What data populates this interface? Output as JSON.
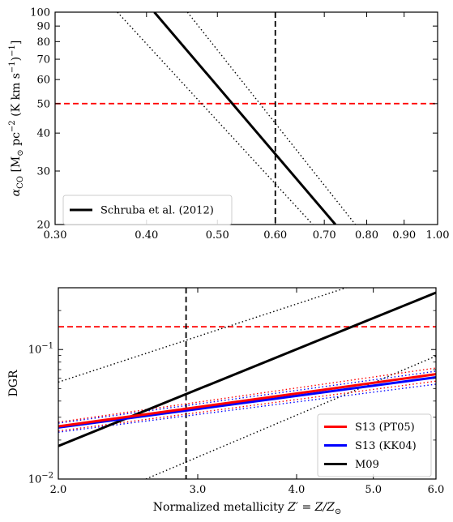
{
  "chart_data": [
    {
      "type": "line",
      "panel": "top",
      "xscale": "log",
      "yscale": "log",
      "xlim": [
        0.3,
        1.0
      ],
      "ylim": [
        20,
        100
      ],
      "xticks": [
        0.3,
        0.4,
        0.5,
        0.6,
        0.7,
        0.8,
        0.9,
        1.0
      ],
      "xtick_labels": [
        "0.30",
        "0.40",
        "0.50",
        "0.60",
        "0.70",
        "0.80",
        "0.90",
        "1.00"
      ],
      "yticks": [
        20,
        30,
        40,
        50,
        60,
        70,
        80,
        90,
        100
      ],
      "ytick_labels": [
        "20",
        "30",
        "40",
        "50",
        "60",
        "70",
        "80",
        "90",
        "100"
      ],
      "xlabel": "",
      "ylabel_parts": {
        "alpha": "α",
        "sub": "CO",
        "main": " [M",
        "sun": "⊙",
        "pc": " pc",
        "pc_exp": "−2",
        "units": " (K km s",
        "s_exp": "−1",
        "close": ")",
        "close_exp": "−1",
        "end": "]"
      },
      "series": [
        {
          "name": "Schruba et al. (2012)",
          "style": "solid",
          "color": "#000000",
          "x": [
            0.41,
            0.725
          ],
          "y": [
            100,
            20
          ]
        },
        {
          "style": "dotted",
          "color": "#000000",
          "x": [
            0.365,
            0.675
          ],
          "y": [
            100,
            20
          ]
        },
        {
          "style": "dotted",
          "color": "#000000",
          "x": [
            0.455,
            0.772
          ],
          "y": [
            100,
            20
          ]
        }
      ],
      "hlines": [
        {
          "y": 50,
          "color": "#ff0000",
          "style": "dashed"
        }
      ],
      "vlines": [
        {
          "x": 0.6,
          "color": "#000000",
          "style": "dashed"
        }
      ],
      "legend": {
        "position": "lower-left",
        "entries": [
          "Schruba et al. (2012)"
        ]
      },
      "grid": false
    },
    {
      "type": "line",
      "panel": "bottom",
      "xscale": "log",
      "yscale": "log",
      "xlim": [
        2.0,
        6.0
      ],
      "ylim": [
        0.01,
        0.3
      ],
      "xticks": [
        2.0,
        3.0,
        4.0,
        5.0,
        6.0
      ],
      "xtick_labels": [
        "2.0",
        "3.0",
        "4.0",
        "5.0",
        "6.0"
      ],
      "yticks": [
        0.01,
        0.1
      ],
      "ytick_labels": [
        {
          "base": "10",
          "exp": "−2"
        },
        {
          "base": "10",
          "exp": "−1"
        }
      ],
      "xlabel_parts": {
        "text": "Normalized metallicity ",
        "Zp": "Z′ = Z/Z",
        "sun": "⊙"
      },
      "ylabel": "DGR",
      "series": [
        {
          "name": "S13 (PT05)",
          "style": "solid",
          "color": "#ff0000",
          "x": [
            2.0,
            6.0
          ],
          "y": [
            0.0255,
            0.0645
          ]
        },
        {
          "name": "S13 (KK04)",
          "style": "solid",
          "color": "#0000ff",
          "x": [
            2.0,
            6.0
          ],
          "y": [
            0.025,
            0.061
          ]
        },
        {
          "name": "M09",
          "style": "solid",
          "color": "#000000",
          "x": [
            2.0,
            6.0
          ],
          "y": [
            0.018,
            0.275
          ]
        },
        {
          "style": "dotted",
          "color": "#000000",
          "x": [
            2.0,
            4.62
          ],
          "y": [
            0.056,
            0.3
          ]
        },
        {
          "style": "dotted",
          "color": "#000000",
          "x": [
            2.58,
            6.0
          ],
          "y": [
            0.01,
            0.089
          ]
        },
        {
          "style": "dotted",
          "color": "#ff0000",
          "x": [
            2.0,
            6.0
          ],
          "y": [
            0.0275,
            0.072
          ]
        },
        {
          "style": "dotted",
          "color": "#ff0000",
          "x": [
            2.0,
            6.0
          ],
          "y": [
            0.0235,
            0.057
          ]
        },
        {
          "style": "dotted",
          "color": "#0000ff",
          "x": [
            2.0,
            6.0
          ],
          "y": [
            0.027,
            0.068
          ]
        },
        {
          "style": "dotted",
          "color": "#0000ff",
          "x": [
            2.0,
            6.0
          ],
          "y": [
            0.023,
            0.054
          ]
        }
      ],
      "hlines": [
        {
          "y": 0.15,
          "color": "#ff0000",
          "style": "dashed"
        }
      ],
      "vlines": [
        {
          "x": 2.9,
          "color": "#000000",
          "style": "dashed"
        }
      ],
      "legend": {
        "position": "lower-right",
        "entries": [
          "S13 (PT05)",
          "S13 (KK04)",
          "M09"
        ]
      },
      "grid": false
    }
  ]
}
